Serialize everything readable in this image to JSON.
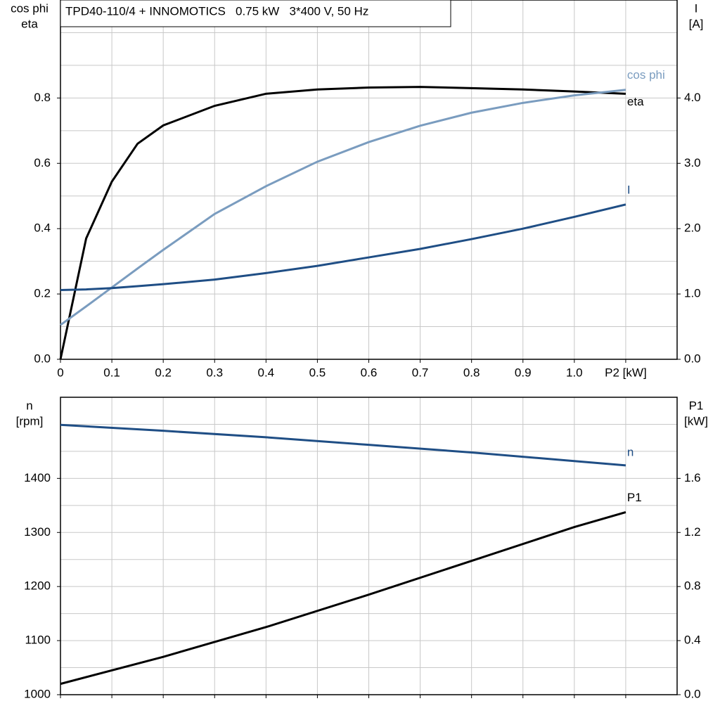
{
  "chart_data": [
    {
      "type": "line",
      "title": "TPD40-110/4 + INNOMOTICS   0.75 kW   3*400 V, 50 Hz",
      "y_label": [
        "cos phi",
        "eta"
      ],
      "y2_label": [
        "I",
        "[A]"
      ],
      "x": [
        0,
        0.05,
        0.1,
        0.15,
        0.2,
        0.3,
        0.4,
        0.5,
        0.6,
        0.7,
        0.8,
        0.9,
        1.0,
        1.1
      ],
      "xlim": [
        0,
        1.2
      ],
      "xticks": [
        {
          "value": 0,
          "label": "0"
        },
        0.1,
        0.2,
        0.3,
        0.4,
        0.5,
        0.6,
        0.7,
        0.8,
        0.9,
        {
          "value": 1.0,
          "label": "1.0"
        },
        {
          "value": 1.1,
          "label": "P2 [kW]"
        }
      ],
      "ylim": [
        0,
        1.1
      ],
      "yticks": [
        {
          "value": 0,
          "label": "0.0"
        },
        0.2,
        0.4,
        0.6,
        0.8
      ],
      "ygrid": [
        0,
        0.1,
        0.2,
        0.3,
        0.4,
        0.5,
        0.6,
        0.7,
        0.8,
        0.9,
        1.0
      ],
      "y2lim": [
        0,
        5.5
      ],
      "y2ticks": [
        {
          "value": 0,
          "label": "0.0"
        },
        {
          "value": 1,
          "label": "1.0"
        },
        {
          "value": 2,
          "label": "2.0"
        },
        {
          "value": 3,
          "label": "3.0"
        },
        {
          "value": 4,
          "label": "4.0"
        }
      ],
      "grid": true,
      "series": [
        {
          "name": "eta",
          "color": "#000000",
          "values": [
            0,
            0.37,
            0.544,
            0.66,
            0.716,
            0.776,
            0.813,
            0.826,
            0.832,
            0.834,
            0.83,
            0.826,
            0.82,
            0.813
          ]
        },
        {
          "name": "cos phi",
          "color": "#7a9cbf",
          "values": [
            0.105,
            0.162,
            0.22,
            0.278,
            0.335,
            0.445,
            0.53,
            0.605,
            0.665,
            0.715,
            0.755,
            0.785,
            0.808,
            0.825
          ]
        },
        {
          "name": "I",
          "color": "#1f4e85",
          "axis": "y2",
          "values": [
            1.06,
            1.07,
            1.09,
            1.12,
            1.15,
            1.22,
            1.32,
            1.43,
            1.56,
            1.69,
            1.84,
            2.0,
            2.18,
            2.37
          ]
        }
      ]
    },
    {
      "type": "line",
      "y_label": [
        "n",
        "[rpm]"
      ],
      "y2_label": [
        "P1",
        "[kW]"
      ],
      "x": [
        0,
        0.2,
        0.4,
        0.6,
        0.8,
        1.0,
        1.1
      ],
      "xlim": [
        0,
        1.2
      ],
      "xgrid": [
        0,
        0.1,
        0.2,
        0.3,
        0.4,
        0.5,
        0.6,
        0.7,
        0.8,
        0.9,
        1.0,
        1.1
      ],
      "ylim": [
        1000,
        1550
      ],
      "yticks": [
        1000,
        1100,
        1200,
        1300,
        1400
      ],
      "ygrid": [
        1000,
        1050,
        1100,
        1150,
        1200,
        1250,
        1300,
        1350,
        1400,
        1450,
        1500
      ],
      "y2lim": [
        0,
        2.2
      ],
      "y2ticks": [
        {
          "value": 0,
          "label": "0.0"
        },
        0.4,
        0.8,
        1.2,
        1.6
      ],
      "grid": true,
      "series": [
        {
          "name": "n",
          "color": "#1f4e85",
          "values": [
            1499,
            1488,
            1476,
            1462,
            1448,
            1432,
            1424
          ]
        },
        {
          "name": "P1",
          "color": "#000000",
          "axis": "y2",
          "values": [
            0.08,
            0.28,
            0.5,
            0.74,
            0.99,
            1.24,
            1.35
          ]
        }
      ]
    }
  ]
}
